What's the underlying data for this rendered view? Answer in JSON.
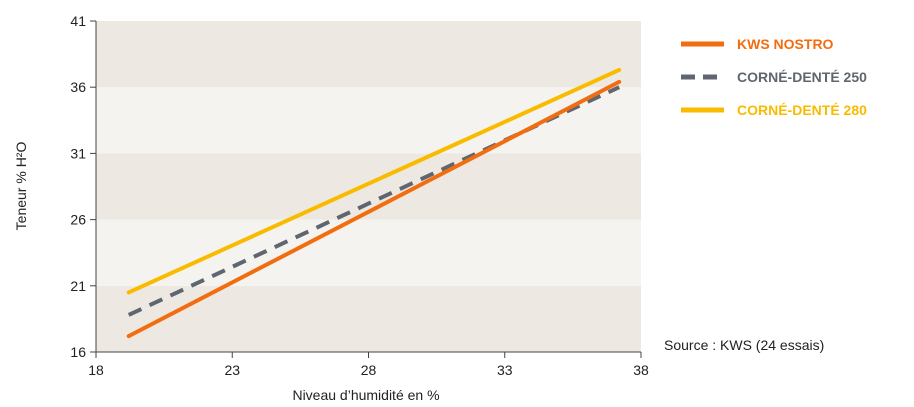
{
  "chart_data": {
    "type": "line",
    "xlabel": "Niveau d’humidité en %",
    "ylabel": "Teneur % H²O",
    "xlim": [
      18,
      38
    ],
    "ylim": [
      16,
      41
    ],
    "xticks": [
      18,
      23,
      28,
      33,
      38
    ],
    "yticks": [
      16,
      21,
      26,
      31,
      36,
      41
    ],
    "grid": "alternating horizontal bands",
    "legend_position": "top-right",
    "series": [
      {
        "name": "KWS NOSTRO",
        "color": "#f26d10",
        "dash": "solid",
        "x": [
          19.2,
          37.2
        ],
        "y": [
          17.2,
          36.4
        ]
      },
      {
        "name": "CORNÉ-DENTÉ 250",
        "color": "#5f6670",
        "dash": "dashed",
        "x": [
          19.2,
          37.2
        ],
        "y": [
          18.8,
          36.0
        ]
      },
      {
        "name": "CORNÉ-DENTÉ 280",
        "color": "#f8bb00",
        "dash": "solid",
        "x": [
          19.2,
          37.2
        ],
        "y": [
          20.5,
          37.3
        ]
      }
    ]
  },
  "source_note": "Source : KWS (24 essais)",
  "colors": {
    "band_dark": "#ede9e2",
    "band_light": "#f5f3ef",
    "axis": "#444444"
  }
}
